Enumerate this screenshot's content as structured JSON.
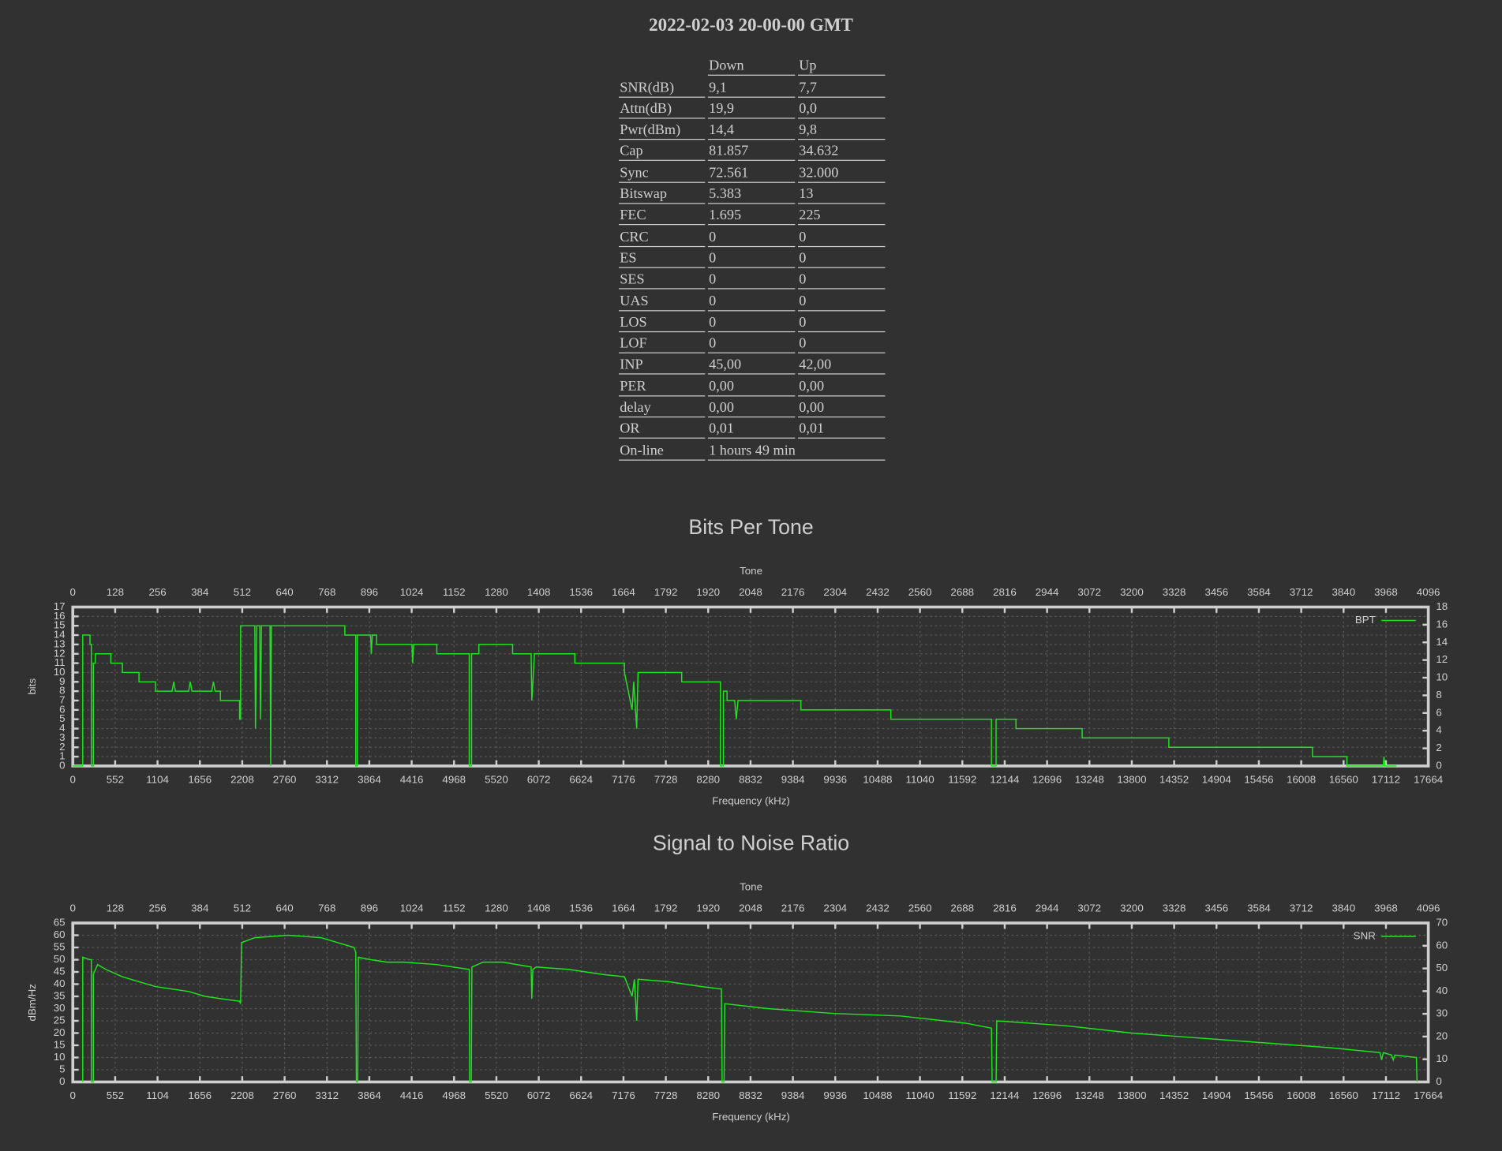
{
  "header": {
    "title": "2022-02-03 20-00-00 GMT"
  },
  "table": {
    "columns": [
      "Down",
      "Up"
    ],
    "rows": [
      [
        "SNR(dB)",
        "9,1",
        "7,7"
      ],
      [
        "Attn(dB)",
        "19,9",
        "0,0"
      ],
      [
        "Pwr(dBm)",
        "14,4",
        "9,8"
      ],
      [
        "Cap",
        "81.857",
        "34.632"
      ],
      [
        "Sync",
        "72.561",
        "32.000"
      ],
      [
        "Bitswap",
        "5.383",
        "13"
      ],
      [
        "FEC",
        "1.695",
        "225"
      ],
      [
        "CRC",
        "0",
        "0"
      ],
      [
        "ES",
        "0",
        "0"
      ],
      [
        "SES",
        "0",
        "0"
      ],
      [
        "UAS",
        "0",
        "0"
      ],
      [
        "LOS",
        "0",
        "0"
      ],
      [
        "LOF",
        "0",
        "0"
      ],
      [
        "INP",
        "45,00",
        "42,00"
      ],
      [
        "PER",
        "0,00",
        "0,00"
      ],
      [
        "delay",
        "0,00",
        "0,00"
      ],
      [
        "OR",
        "0,01",
        "0,01"
      ],
      [
        "On-line",
        "1 hours 49 min"
      ]
    ]
  },
  "chart_data": [
    {
      "type": "line",
      "title": "Bits Per Tone",
      "x2label": "Tone",
      "xlabel": "Frequency (kHz)",
      "ylabel": "bits",
      "xlim": [
        0,
        17664
      ],
      "xticks": [
        0,
        552,
        1104,
        1656,
        2208,
        2760,
        3312,
        3864,
        4416,
        4968,
        5520,
        6072,
        6624,
        7176,
        7728,
        8280,
        8832,
        9384,
        9936,
        10488,
        11040,
        11592,
        12144,
        12696,
        13248,
        13800,
        14352,
        14904,
        15456,
        16008,
        16560,
        17112,
        17664
      ],
      "x2lim": [
        0,
        4096
      ],
      "x2ticks": [
        0,
        128,
        256,
        384,
        512,
        640,
        768,
        896,
        1024,
        1152,
        1280,
        1408,
        1536,
        1664,
        1792,
        1920,
        2048,
        2176,
        2304,
        2432,
        2560,
        2688,
        2816,
        2944,
        3072,
        3200,
        3328,
        3456,
        3584,
        3712,
        3840,
        3968,
        4096
      ],
      "ylim": [
        0,
        17
      ],
      "yticks": [
        0,
        1,
        2,
        3,
        4,
        5,
        6,
        7,
        8,
        9,
        10,
        11,
        12,
        13,
        14,
        15,
        16,
        17
      ],
      "y2lim": [
        0,
        18
      ],
      "y2ticks": [
        0,
        2,
        4,
        6,
        8,
        10,
        12,
        14,
        16,
        18
      ],
      "grid": true,
      "legend": "top-right",
      "x": [
        0,
        30,
        30,
        52,
        52,
        56,
        56,
        62,
        62,
        68,
        68,
        115,
        115,
        150,
        150,
        200,
        200,
        250,
        250,
        300,
        305,
        310,
        350,
        355,
        360,
        420,
        425,
        430,
        446,
        446,
        504,
        504,
        507,
        507,
        550,
        552,
        556,
        565,
        567,
        570,
        596,
        598,
        600,
        822,
        822,
        855,
        855,
        860,
        860,
        900,
        902,
        905,
        918,
        918,
        1025,
        1027,
        1030,
        1100,
        1100,
        1198,
        1198,
        1205,
        1205,
        1227,
        1227,
        1329,
        1329,
        1385,
        1387,
        1392,
        1395,
        1517,
        1517,
        1667,
        1667,
        1690,
        1695,
        1704,
        1708,
        1840,
        1840,
        1957,
        1957,
        1966,
        1966,
        1977,
        1977,
        2000,
        2005,
        2010,
        2200,
        2200,
        2472,
        2472,
        2776,
        2776,
        2790,
        2790,
        2850,
        2850,
        3050,
        3050,
        3312,
        3312,
        3746,
        3746,
        3850,
        3850,
        3960,
        3962,
        3965,
        4000
      ],
      "series": [
        {
          "name": "BPT",
          "color": "#1ee61e",
          "values": [
            0,
            0,
            14,
            14,
            13,
            13,
            0,
            0,
            11,
            11,
            12,
            12,
            11,
            11,
            10,
            10,
            9,
            9,
            8,
            8,
            9,
            8,
            8,
            9,
            8,
            8,
            9,
            8,
            8,
            7,
            7,
            5,
            5,
            15,
            15,
            4,
            15,
            15,
            5,
            15,
            15,
            0,
            15,
            15,
            14,
            14,
            0,
            0,
            14,
            14,
            12,
            14,
            14,
            13,
            13,
            11,
            13,
            13,
            12,
            12,
            0,
            0,
            12,
            12,
            13,
            13,
            12,
            12,
            7,
            10,
            12,
            12,
            11,
            11,
            10,
            6,
            9,
            4,
            10,
            10,
            9,
            9,
            0,
            0,
            8,
            8,
            7,
            7,
            5,
            7,
            7,
            6,
            6,
            5,
            5,
            0,
            0,
            5,
            5,
            4,
            4,
            3,
            3,
            2,
            2,
            1,
            1,
            0,
            0,
            1,
            0,
            0
          ]
        }
      ]
    },
    {
      "type": "line",
      "title": "Signal to Noise Ratio",
      "x2label": "Tone",
      "xlabel": "Frequency (kHz)",
      "ylabel": "dBm/Hz",
      "xlim": [
        0,
        17664
      ],
      "xticks": [
        0,
        552,
        1104,
        1656,
        2208,
        2760,
        3312,
        3864,
        4416,
        4968,
        5520,
        6072,
        6624,
        7176,
        7728,
        8280,
        8832,
        9384,
        9936,
        10488,
        11040,
        11592,
        12144,
        12696,
        13248,
        13800,
        14352,
        14904,
        15456,
        16008,
        16560,
        17112,
        17664
      ],
      "x2lim": [
        0,
        4096
      ],
      "x2ticks": [
        0,
        128,
        256,
        384,
        512,
        640,
        768,
        896,
        1024,
        1152,
        1280,
        1408,
        1536,
        1664,
        1792,
        1920,
        2048,
        2176,
        2304,
        2432,
        2560,
        2688,
        2816,
        2944,
        3072,
        3200,
        3328,
        3456,
        3584,
        3712,
        3840,
        3968,
        4096
      ],
      "ylim": [
        0,
        65
      ],
      "yticks": [
        0,
        5,
        10,
        15,
        20,
        25,
        30,
        35,
        40,
        45,
        50,
        55,
        60,
        65
      ],
      "y2lim": [
        0,
        70
      ],
      "y2ticks": [
        0,
        10,
        20,
        30,
        40,
        50,
        60,
        70
      ],
      "grid": true,
      "legend": "top-right",
      "x": [
        30,
        30,
        52,
        56,
        56,
        62,
        62,
        75,
        100,
        150,
        200,
        250,
        300,
        350,
        400,
        450,
        504,
        507,
        510,
        550,
        650,
        750,
        800,
        850,
        855,
        857,
        861,
        863,
        900,
        950,
        1000,
        1100,
        1198,
        1199,
        1204,
        1206,
        1240,
        1300,
        1385,
        1387,
        1390,
        1400,
        1500,
        1600,
        1667,
        1690,
        1697,
        1704,
        1708,
        1800,
        1900,
        1960,
        1962,
        1968,
        1970,
        2100,
        2300,
        2500,
        2700,
        2776,
        2778,
        2790,
        2792,
        3000,
        3200,
        3400,
        3600,
        3800,
        3950,
        3955,
        3960,
        3985,
        3990,
        3995,
        4060,
        4062
      ],
      "series": [
        {
          "name": "SNR",
          "color": "#1ee61e",
          "values": [
            0,
            51,
            50,
            50,
            0,
            0,
            44,
            48,
            46,
            43,
            41,
            39,
            38,
            37,
            35,
            34,
            33,
            32,
            57,
            59,
            60,
            59,
            57,
            55,
            53,
            0,
            0,
            51,
            50,
            49,
            49,
            48,
            46,
            0,
            0,
            47,
            49,
            49,
            47,
            34,
            46,
            47,
            46,
            44,
            43,
            35,
            42,
            25,
            42,
            41,
            39,
            38,
            0,
            0,
            32,
            30,
            28,
            27,
            24,
            22,
            0,
            0,
            25,
            23,
            20,
            18,
            16,
            14,
            12,
            9,
            12,
            11,
            9,
            11,
            10,
            0
          ]
        }
      ]
    }
  ]
}
